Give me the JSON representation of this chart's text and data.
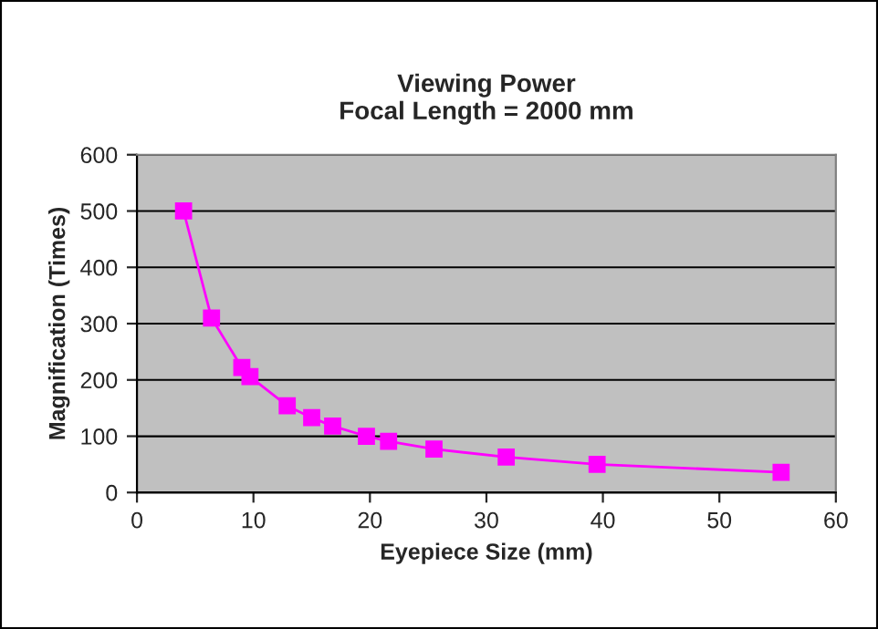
{
  "chart_data": {
    "type": "line",
    "title": "Viewing Power\nFocal Length = 2000 mm",
    "xlabel": "Eyepiece Size (mm)",
    "ylabel": "Magnification (Times)",
    "x": [
      4,
      6.4,
      9,
      9.7,
      12.9,
      15,
      16.8,
      19.7,
      21.6,
      25.5,
      31.7,
      39.5,
      55.3
    ],
    "series": [
      {
        "color": "#ff00ff",
        "values": [
          500,
          310,
          222,
          206,
          154,
          133,
          118,
          100,
          91,
          77,
          63,
          50,
          36
        ]
      }
    ],
    "xlim": [
      0,
      60
    ],
    "xticks": [
      0,
      10,
      20,
      30,
      40,
      50,
      60
    ],
    "ylim": [
      0,
      600
    ],
    "yticks": [
      0,
      100,
      200,
      300,
      400,
      500,
      600
    ],
    "grid": "y",
    "marker": "square",
    "line_style": "solid",
    "legend": false
  }
}
